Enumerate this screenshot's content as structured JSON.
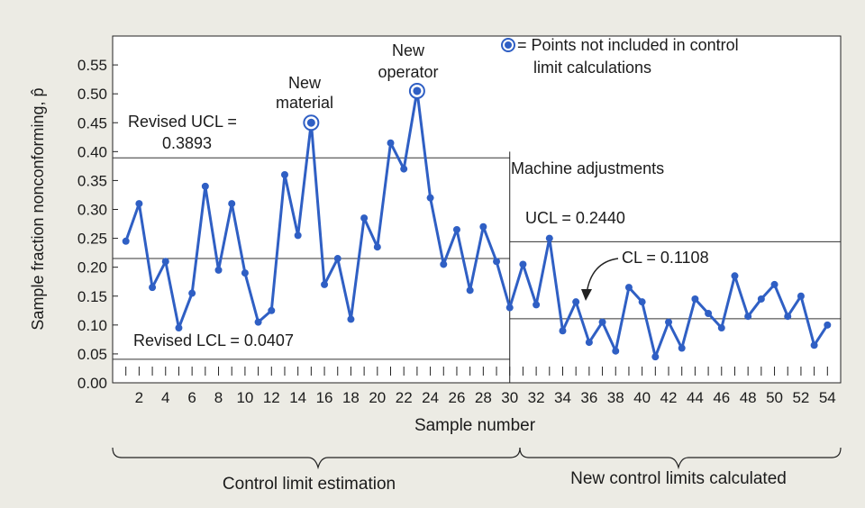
{
  "chart_data": {
    "type": "line",
    "xlabel": "Sample number",
    "ylabel": "Sample fraction nonconforming, p̂",
    "xlim": [
      0,
      55
    ],
    "ylim": [
      0,
      0.6
    ],
    "x_tick_labels": [
      "2",
      "4",
      "6",
      "8",
      "10",
      "12",
      "14",
      "16",
      "18",
      "20",
      "22",
      "24",
      "26",
      "28",
      "30",
      "32",
      "34",
      "36",
      "38",
      "40",
      "42",
      "44",
      "46",
      "48",
      "50",
      "52",
      "54"
    ],
    "y_tick_labels": [
      "0.00",
      "0.05",
      "0.10",
      "0.15",
      "0.20",
      "0.25",
      "0.30",
      "0.35",
      "0.40",
      "0.45",
      "0.50",
      "0.55"
    ],
    "series": [
      {
        "x": [
          1,
          2,
          3,
          4,
          5,
          6,
          7,
          8,
          9,
          10,
          11,
          12,
          13,
          14,
          15,
          16,
          17,
          18,
          19,
          20,
          21,
          22,
          23,
          24,
          25,
          26,
          27,
          28,
          29,
          30,
          31,
          32,
          33,
          34,
          35,
          36,
          37,
          38,
          39,
          40,
          41,
          42,
          43,
          44,
          45,
          46,
          47,
          48,
          49,
          50,
          51,
          52,
          53,
          54
        ],
        "values": [
          0.245,
          0.31,
          0.165,
          0.21,
          0.095,
          0.155,
          0.34,
          0.195,
          0.31,
          0.19,
          0.105,
          0.125,
          0.36,
          0.255,
          0.45,
          0.17,
          0.215,
          0.11,
          0.285,
          0.235,
          0.415,
          0.37,
          0.505,
          0.32,
          0.205,
          0.265,
          0.16,
          0.27,
          0.21,
          0.13,
          0.205,
          0.135,
          0.25,
          0.09,
          0.14,
          0.07,
          0.105,
          0.055,
          0.165,
          0.14,
          0.045,
          0.105,
          0.06,
          0.145,
          0.12,
          0.095,
          0.185,
          0.115,
          0.145,
          0.17,
          0.115,
          0.15,
          0.065,
          0.1
        ],
        "color": "#2f5fc4"
      }
    ],
    "excluded_points": [
      {
        "x": 15,
        "y": 0.45
      },
      {
        "x": 23,
        "y": 0.505
      }
    ],
    "control_limits": [
      {
        "x_start": 0,
        "x_end": 30,
        "y": 0.3893
      },
      {
        "x_start": 0,
        "x_end": 30,
        "y": 0.215
      },
      {
        "x_start": 0,
        "x_end": 30,
        "y": 0.0407
      },
      {
        "x_start": 30,
        "x_end": 55,
        "y": 0.244
      },
      {
        "x_start": 30,
        "x_end": 55,
        "y": 0.1108
      }
    ],
    "divider_x": 30,
    "annotations": {
      "legend_text_line1": "= Points not included in control",
      "legend_text_line2": "limit calculations",
      "new_material_line1": "New",
      "new_material_line2": "material",
      "new_operator_line1": "New",
      "new_operator_line2": "operator",
      "revised_ucl_line1": "Revised UCL =",
      "revised_ucl_line2": "0.3893",
      "revised_lcl": "Revised LCL = 0.0407",
      "machine_adjustments": "Machine adjustments",
      "ucl_new": "UCL = 0.2440",
      "cl_new": "CL = 0.1108",
      "left_bracket_label": "Control limit estimation",
      "right_bracket_label": "New control limits calculated"
    },
    "grid": false,
    "legend_position": "top-right"
  }
}
